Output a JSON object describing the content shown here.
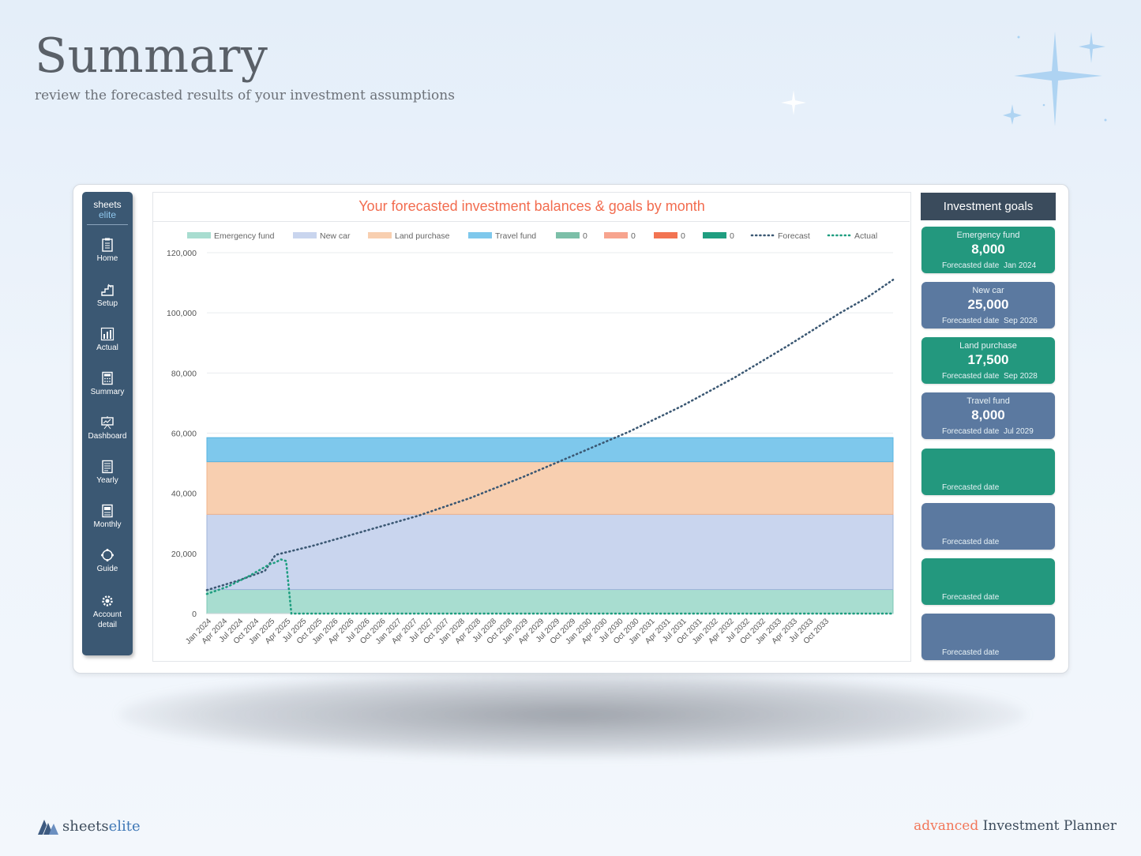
{
  "page": {
    "title": "Summary",
    "subtitle": "review the forecasted results of your investment assumptions"
  },
  "sidebar": {
    "brand_top": "sheets",
    "brand_bottom": "elite",
    "items": [
      {
        "label": "Home",
        "icon": "clipboard-icon"
      },
      {
        "label": "Setup",
        "icon": "stairs-icon"
      },
      {
        "label": "Actual",
        "icon": "bar-chart-icon"
      },
      {
        "label": "Summary",
        "icon": "calculator-icon"
      },
      {
        "label": "Dashboard",
        "icon": "presentation-icon"
      },
      {
        "label": "Yearly",
        "icon": "list-icon"
      },
      {
        "label": "Monthly",
        "icon": "document-icon"
      },
      {
        "label": "Guide",
        "icon": "compass-icon"
      },
      {
        "label_line1": "Account",
        "label_line2": "detail",
        "icon": "gear-icon"
      }
    ]
  },
  "chart_data": {
    "type": "area",
    "title": "Your forecasted investment balances & goals by month",
    "ylim": [
      0,
      120000
    ],
    "yticks": [
      0,
      20000,
      40000,
      60000,
      80000,
      100000,
      120000
    ],
    "ytick_labels": [
      "0",
      "20,000",
      "40,000",
      "60,000",
      "80,000",
      "100,000",
      "120,000"
    ],
    "x_start": "Jan 2024",
    "x_end": "Dec 2033",
    "months": 120,
    "x_tick_labels": [
      "Jan 2024",
      "Apr 2024",
      "Jul 2024",
      "Oct 2024",
      "Jan 2025",
      "Apr 2025",
      "Jul 2025",
      "Oct 2025",
      "Jan 2026",
      "Apr 2026",
      "Jul 2026",
      "Oct 2026",
      "Jan 2027",
      "Apr 2027",
      "Jul 2027",
      "Oct 2027",
      "Jan 2028",
      "Apr 2028",
      "Jul 2028",
      "Oct 2028",
      "Jan 2029",
      "Apr 2029",
      "Jul 2029",
      "Oct 2029",
      "Jan 2030",
      "Apr 2030",
      "Jul 2030",
      "Oct 2030",
      "Jan 2031",
      "Apr 2031",
      "Jul 2031",
      "Oct 2031",
      "Jan 2032",
      "Apr 2032",
      "Jul 2032",
      "Oct 2032",
      "Jan 2033",
      "Apr 2033",
      "Jul 2033",
      "Oct 2033"
    ],
    "stacked_goal_areas": [
      {
        "name": "Emergency fund",
        "value": 8000,
        "color": "#a8ddd0",
        "line": "#7cc7b4"
      },
      {
        "name": "New car",
        "value": 25000,
        "color": "#c9d5ee",
        "line": "#9fb3da"
      },
      {
        "name": "Land purchase",
        "value": 17500,
        "color": "#f8cfb0",
        "line": "#f1b48c"
      },
      {
        "name": "Travel fund",
        "value": 8000,
        "color": "#7ec8ec",
        "line": "#55b3e0"
      }
    ],
    "legend": [
      {
        "label": "Emergency fund",
        "color": "#a8ddd0",
        "style": "box"
      },
      {
        "label": "New car",
        "color": "#c9d5ee",
        "style": "box"
      },
      {
        "label": "Land purchase",
        "color": "#f8cfb0",
        "style": "box"
      },
      {
        "label": "Travel fund",
        "color": "#7ec8ec",
        "style": "box"
      },
      {
        "label": "0",
        "color": "#7cbfa8",
        "style": "box"
      },
      {
        "label": "0",
        "color": "#f7a48e",
        "style": "box"
      },
      {
        "label": "0",
        "color": "#f27452",
        "style": "box"
      },
      {
        "label": "0",
        "color": "#1f9e80",
        "style": "box"
      },
      {
        "label": "Forecast",
        "color": "#3b5873",
        "style": "dots"
      },
      {
        "label": "Actual",
        "color": "#1f9e80",
        "style": "dots"
      }
    ],
    "series": [
      {
        "name": "Forecast",
        "color": "#3b5873",
        "points": [
          [
            0,
            7800
          ],
          [
            6,
            11000
          ],
          [
            11,
            14200
          ],
          [
            13,
            19500
          ],
          [
            20,
            22500
          ],
          [
            30,
            27500
          ],
          [
            40,
            32500
          ],
          [
            50,
            38500
          ],
          [
            60,
            45500
          ],
          [
            70,
            53000
          ],
          [
            80,
            60500
          ],
          [
            90,
            69000
          ],
          [
            100,
            78500
          ],
          [
            110,
            89000
          ],
          [
            120,
            100000
          ],
          [
            125,
            105000
          ],
          [
            130,
            111000
          ]
        ]
      },
      {
        "name": "Actual",
        "color": "#1f9e80",
        "points": [
          [
            0,
            6500
          ],
          [
            4,
            9000
          ],
          [
            8,
            12500
          ],
          [
            12,
            16500
          ],
          [
            13,
            17000
          ],
          [
            14,
            18000
          ],
          [
            15,
            17500
          ],
          [
            16,
            0
          ],
          [
            130,
            0
          ]
        ]
      }
    ]
  },
  "goals": {
    "header": "Investment goals",
    "date_label": "Forecasted date",
    "cards": [
      {
        "name": "Emergency fund",
        "amount": "8,000",
        "date": "Jan 2024",
        "color": "green"
      },
      {
        "name": "New car",
        "amount": "25,000",
        "date": "Sep 2026",
        "color": "blue"
      },
      {
        "name": "Land purchase",
        "amount": "17,500",
        "date": "Sep 2028",
        "color": "green"
      },
      {
        "name": "Travel fund",
        "amount": "8,000",
        "date": "Jul 2029",
        "color": "blue"
      },
      {
        "name": "",
        "amount": "",
        "date": "",
        "color": "green"
      },
      {
        "name": "",
        "amount": "",
        "date": "",
        "color": "blue"
      },
      {
        "name": "",
        "amount": "",
        "date": "",
        "color": "green"
      },
      {
        "name": "",
        "amount": "",
        "date": "",
        "color": "blue"
      }
    ]
  },
  "footer": {
    "brand_part1": "sheets",
    "brand_part2": "elite",
    "product_part1": "advanced",
    "product_part2": " Investment Planner"
  }
}
